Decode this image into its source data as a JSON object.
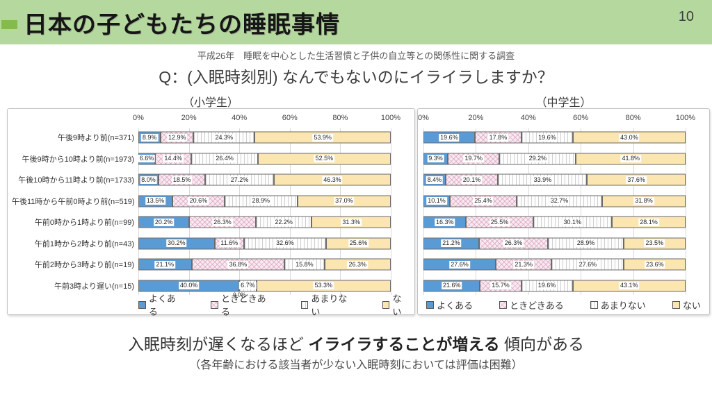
{
  "header": {
    "title": "日本の子どもたちの睡眠事情",
    "page_number": "10",
    "band_color": "#b5d89f",
    "accent_color": "#85ba4d"
  },
  "subtitle": "平成26年　睡眠を中心とした生活習慣と子供の自立等との関係性に関する調査",
  "question": "Q：(入眠時刻別) なんでもないのにイライラしますか？",
  "legend": [
    "よくある",
    "ときどきある",
    "あまりない",
    "ない"
  ],
  "series_colors": {
    "よくある": "#5b9bd5",
    "ときどきある": "#f8eaf1",
    "あまりない": "#fdfdfd",
    "ない": "#fbe6b2"
  },
  "chart_data": [
    {
      "type": "bar",
      "stacked": true,
      "orientation": "horizontal",
      "title": "（小学生）",
      "categories": [
        "午後9時より前(n=371)",
        "午後9時から10時より前(n=1973)",
        "午後10時から11時より前(n=1733)",
        "午後11時から午前0時より前(n=519)",
        "午前0時から1時より前(n=99)",
        "午前1時から2時より前(n=43)",
        "午前2時から3時より前(n=19)",
        "午前3時より遅い(n=15)"
      ],
      "series": [
        {
          "name": "よくある",
          "values": [
            8.9,
            6.6,
            8.0,
            13.5,
            20.2,
            30.2,
            21.1,
            40.0
          ]
        },
        {
          "name": "ときどきある",
          "values": [
            12.9,
            14.4,
            18.5,
            20.6,
            26.3,
            11.6,
            36.8,
            0.0
          ]
        },
        {
          "name": "あまりない",
          "values": [
            24.3,
            26.4,
            27.2,
            28.9,
            22.2,
            32.6,
            15.8,
            6.7
          ]
        },
        {
          "name": "ない",
          "values": [
            53.9,
            52.5,
            46.3,
            37.0,
            31.3,
            25.6,
            26.3,
            53.3
          ]
        }
      ],
      "xlim": [
        0,
        100
      ],
      "x_ticks": [
        "0%",
        "20%",
        "40%",
        "60%",
        "80%",
        "100%"
      ],
      "grid": true,
      "legend_position": "bottom",
      "category_labels_shown": true
    },
    {
      "type": "bar",
      "stacked": true,
      "orientation": "horizontal",
      "title": "（中学生）",
      "categories": [
        "午後9時より前",
        "午後9時から10時より前",
        "午後10時から11時より前",
        "午後11時から午前0時より前",
        "午前0時から1時より前",
        "午前1時から2時より前",
        "午前2時から3時より前",
        "午前3時より遅い"
      ],
      "series": [
        {
          "name": "よくある",
          "values": [
            19.6,
            9.3,
            8.4,
            10.1,
            16.3,
            21.2,
            27.6,
            21.6
          ]
        },
        {
          "name": "ときどきある",
          "values": [
            17.8,
            19.7,
            20.1,
            25.4,
            25.5,
            26.3,
            21.3,
            15.7
          ]
        },
        {
          "name": "あまりない",
          "values": [
            19.6,
            29.2,
            33.9,
            32.7,
            30.1,
            28.9,
            27.6,
            19.6
          ]
        },
        {
          "name": "ない",
          "values": [
            43.0,
            41.8,
            37.6,
            31.8,
            28.1,
            23.5,
            23.6,
            43.1
          ]
        }
      ],
      "xlim": [
        0,
        100
      ],
      "x_ticks": [
        "0%",
        "20%",
        "40%",
        "60%",
        "80%",
        "100%"
      ],
      "grid": true,
      "legend_position": "bottom",
      "category_labels_shown": false
    }
  ],
  "conclusion": {
    "pre": "入眠時刻が遅くなるほど ",
    "bold": "イライラすることが増える",
    "post": " 傾向がある"
  },
  "note": "（各年齢における該当者が少ない入眠時刻においては評価は困難）"
}
